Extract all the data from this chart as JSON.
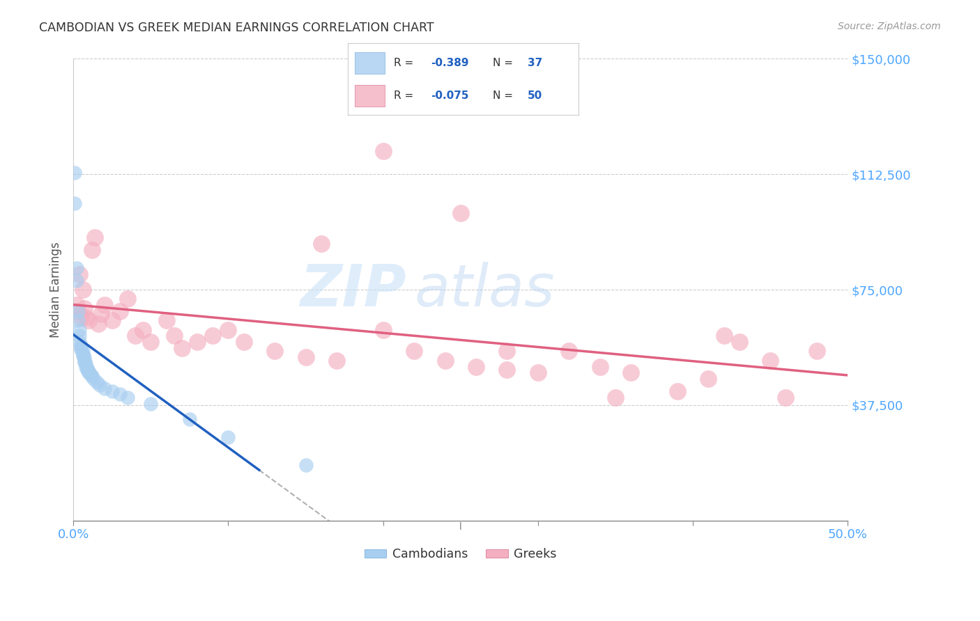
{
  "title": "CAMBODIAN VS GREEK MEDIAN EARNINGS CORRELATION CHART",
  "source": "Source: ZipAtlas.com",
  "ylabel": "Median Earnings",
  "xlim": [
    0.0,
    0.5
  ],
  "ylim": [
    0,
    150000
  ],
  "yticks": [
    0,
    37500,
    75000,
    112500,
    150000
  ],
  "ytick_labels": [
    "",
    "$37,500",
    "$75,000",
    "$112,500",
    "$150,000"
  ],
  "xtick_labels": [
    "0.0%",
    "",
    "",
    "",
    "",
    "50.0%"
  ],
  "cambodian_color": "#a8cef0",
  "greek_color": "#f4afc0",
  "cambodian_line_color": "#2060c0",
  "greek_line_color": "#e06080",
  "watermark_zip": "ZIP",
  "watermark_atlas": "atlas",
  "cam_x": [
    0.001,
    0.001,
    0.002,
    0.002,
    0.003,
    0.003,
    0.004,
    0.004,
    0.004,
    0.005,
    0.005,
    0.005,
    0.006,
    0.006,
    0.006,
    0.007,
    0.007,
    0.007,
    0.008,
    0.008,
    0.009,
    0.009,
    0.01,
    0.01,
    0.011,
    0.012,
    0.013,
    0.015,
    0.017,
    0.02,
    0.025,
    0.03,
    0.035,
    0.05,
    0.075,
    0.1,
    0.15
  ],
  "cam_y": [
    113000,
    103000,
    82000,
    78000,
    68000,
    65000,
    62000,
    60000,
    58000,
    57000,
    56000,
    55500,
    55000,
    54000,
    53500,
    53000,
    52000,
    51500,
    51000,
    50000,
    49500,
    49000,
    48500,
    48000,
    47500,
    47000,
    46000,
    45000,
    44000,
    43000,
    42000,
    41000,
    40000,
    38000,
    33000,
    27000,
    18000
  ],
  "greek_x": [
    0.002,
    0.003,
    0.004,
    0.005,
    0.006,
    0.007,
    0.008,
    0.01,
    0.012,
    0.014,
    0.016,
    0.018,
    0.02,
    0.025,
    0.03,
    0.035,
    0.04,
    0.045,
    0.05,
    0.06,
    0.065,
    0.07,
    0.08,
    0.09,
    0.1,
    0.11,
    0.13,
    0.15,
    0.17,
    0.2,
    0.22,
    0.24,
    0.26,
    0.28,
    0.3,
    0.32,
    0.34,
    0.36,
    0.39,
    0.41,
    0.43,
    0.45,
    0.25,
    0.2,
    0.16,
    0.28,
    0.35,
    0.42,
    0.46,
    0.48
  ],
  "greek_y": [
    70000,
    68000,
    80000,
    66000,
    75000,
    69000,
    66000,
    65000,
    88000,
    92000,
    64000,
    67000,
    70000,
    65000,
    68000,
    72000,
    60000,
    62000,
    58000,
    65000,
    60000,
    56000,
    58000,
    60000,
    62000,
    58000,
    55000,
    53000,
    52000,
    62000,
    55000,
    52000,
    50000,
    49000,
    48000,
    55000,
    50000,
    48000,
    42000,
    46000,
    58000,
    52000,
    100000,
    120000,
    90000,
    55000,
    40000,
    60000,
    40000,
    55000
  ]
}
